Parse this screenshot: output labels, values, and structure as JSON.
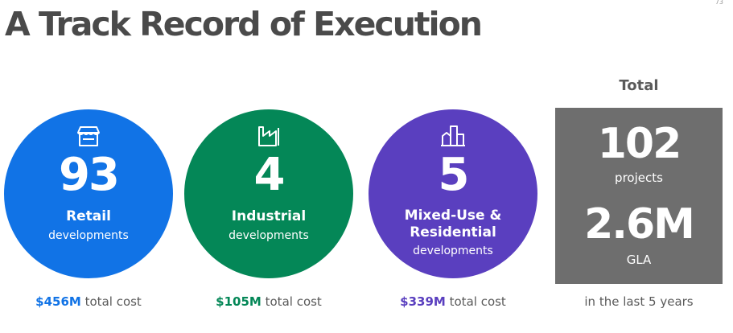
{
  "page_number": "73",
  "title": "A Track Record of Execution",
  "colors": {
    "retail": "#1173e6",
    "industrial": "#048757",
    "mixed": "#5a3fbf",
    "total_box": "#6e6e6e",
    "title": "#4a4a4a"
  },
  "retail": {
    "icon": "storefront-icon",
    "number": "93",
    "category": "Retail",
    "sub": "developments",
    "cost_amount": "$456M",
    "cost_label": "total cost"
  },
  "industrial": {
    "icon": "factory-icon",
    "number": "4",
    "category": "Industrial",
    "sub": "developments",
    "cost_amount": "$105M",
    "cost_label": "total cost"
  },
  "mixed": {
    "icon": "buildings-icon",
    "number": "5",
    "category_line1": "Mixed-Use &",
    "category_line2": "Residential",
    "sub": "developments",
    "cost_amount": "$339M",
    "cost_label": "total cost"
  },
  "total": {
    "heading": "Total",
    "projects_number": "102",
    "projects_label": "projects",
    "gla_number": "2.6M",
    "gla_label": "GLA",
    "caption": "in the last 5 years"
  }
}
